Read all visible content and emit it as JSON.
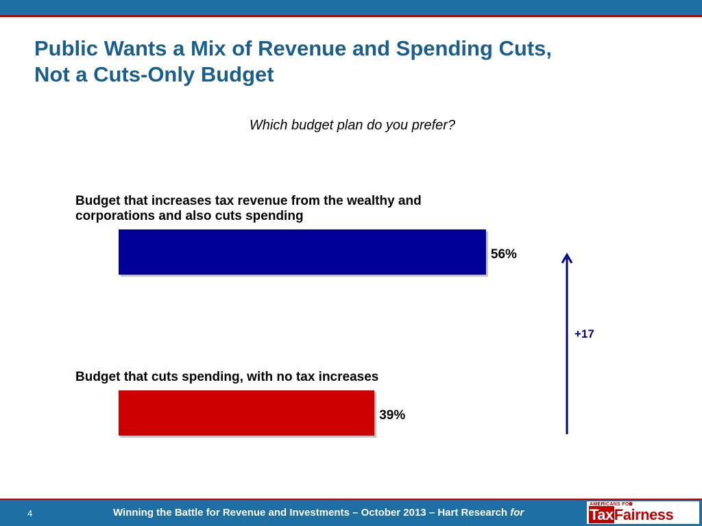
{
  "slide": {
    "title_lines": [
      "Public Wants a Mix of Revenue and Spending Cuts,",
      "Not a Cuts-Only Budget"
    ],
    "page_number": "4",
    "footer_text": "Winning the Battle for Revenue and Investments – October 2013 – Hart Research ",
    "footer_for": "for",
    "logo": {
      "top": "AMERICANS FOR",
      "star": "★",
      "tax": "Tax",
      "fairness": "Fairness"
    }
  },
  "chart_data": {
    "type": "bar",
    "orientation": "horizontal",
    "subtitle": "Which budget plan do you prefer?",
    "categories": [
      {
        "lines": [
          "Budget that increases tax revenue from the wealthy and",
          "corporations and also cuts spending"
        ]
      },
      {
        "lines": [
          "Budget that cuts spending, with no tax increases"
        ]
      }
    ],
    "values": [
      56,
      39
    ],
    "value_labels": [
      "56%",
      "39%"
    ],
    "colors": [
      "#000099",
      "#cc0000"
    ],
    "difference": {
      "label": "+17",
      "value": 17,
      "color": "#000080"
    },
    "xlim": [
      0,
      100
    ],
    "grid": false
  }
}
